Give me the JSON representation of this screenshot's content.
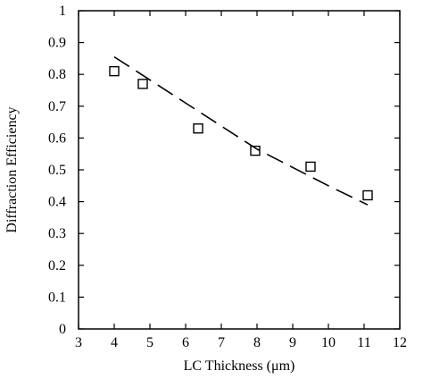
{
  "chart_data": {
    "type": "scatter",
    "title": "",
    "xlabel": "LC Thickness (μm)",
    "ylabel": "Diffraction Efficiency",
    "xlim": [
      3,
      12
    ],
    "ylim": [
      0,
      1
    ],
    "xticks": [
      "3",
      "4",
      "5",
      "6",
      "7",
      "8",
      "9",
      "10",
      "11",
      "12"
    ],
    "yticks": [
      "0",
      "0.1",
      "0.2",
      "0.3",
      "0.4",
      "0.5",
      "0.6",
      "0.7",
      "0.8",
      "0.9",
      "1"
    ],
    "grid": false,
    "marker": "open-square",
    "series": [
      {
        "kind": "points",
        "x": [
          4.0,
          4.8,
          6.35,
          7.95,
          9.5,
          11.1
        ],
        "y": [
          0.81,
          0.77,
          0.63,
          0.56,
          0.51,
          0.42
        ]
      },
      {
        "kind": "dashed-line",
        "x": [
          4.0,
          6.0,
          8.0,
          10.0,
          11.1
        ],
        "y": [
          0.855,
          0.71,
          0.565,
          0.45,
          0.39
        ]
      }
    ],
    "colors": {
      "ink": "#000000",
      "background": "#ffffff"
    }
  }
}
